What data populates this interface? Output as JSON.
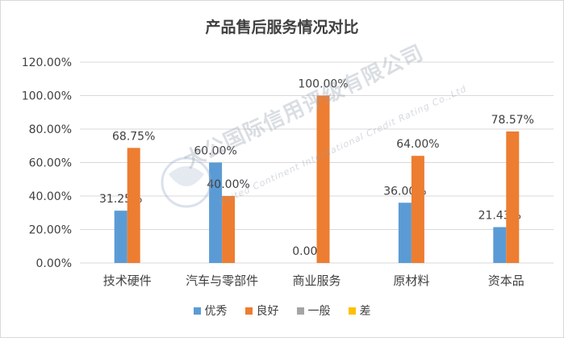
{
  "chart_data": {
    "type": "bar",
    "title": "产品售后服务情况对比",
    "categories": [
      "技术硬件",
      "汽车与零部件",
      "商业服务",
      "原材料",
      "资本品"
    ],
    "series": [
      {
        "name": "优秀",
        "color": "#5b9bd5",
        "values": [
          31.25,
          60.0,
          0.0,
          36.0,
          21.43
        ]
      },
      {
        "name": "良好",
        "color": "#ed7d31",
        "values": [
          68.75,
          40.0,
          100.0,
          64.0,
          78.57
        ]
      },
      {
        "name": "一般",
        "color": "#a5a5a5",
        "values": [
          null,
          null,
          null,
          null,
          null
        ]
      },
      {
        "name": "差",
        "color": "#ffc000",
        "values": [
          null,
          null,
          null,
          null,
          null
        ]
      }
    ],
    "data_labels": [
      [
        "31.25%",
        "60.00%",
        "0.00%",
        "36.00%",
        "21.43%"
      ],
      [
        "68.75%",
        "40.00%",
        "100.00%",
        "64.00%",
        "78.57%"
      ]
    ],
    "ylim": [
      0,
      120
    ],
    "yticks": [
      0,
      20,
      40,
      60,
      80,
      100,
      120
    ],
    "ytick_labels": [
      "0.00%",
      "20.00%",
      "40.00%",
      "60.00%",
      "80.00%",
      "100.00%",
      "120.00%"
    ],
    "grid": true,
    "legend": "bottom"
  },
  "watermark": {
    "name": "大公国际信用评级有限公司",
    "sub": "United Continent International Credit Rating Co.,Ltd"
  }
}
